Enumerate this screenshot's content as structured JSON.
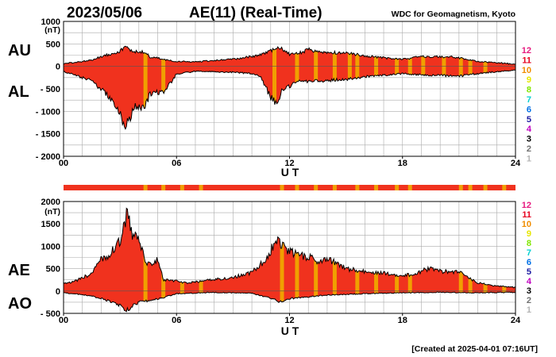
{
  "header": {
    "date": "2023/05/06",
    "title": "AE(11) (Real-Time)",
    "source": "WDC for Geomagnetism, Kyoto"
  },
  "footer": {
    "created": "[Created at 2025-04-01 07:16UT]"
  },
  "legend": {
    "items": [
      {
        "label": "12",
        "color": "#e6197f"
      },
      {
        "label": "11",
        "color": "#e6001f"
      },
      {
        "label": "10",
        "color": "#f08c00"
      },
      {
        "label": "9",
        "color": "#e6e600"
      },
      {
        "label": "8",
        "color": "#80e600"
      },
      {
        "label": "7",
        "color": "#00d0d0"
      },
      {
        "label": "6",
        "color": "#0070e6"
      },
      {
        "label": "5",
        "color": "#1a1aa0"
      },
      {
        "label": "4",
        "color": "#c000c0"
      },
      {
        "label": "3",
        "color": "#000000"
      },
      {
        "label": "2",
        "color": "#707070"
      },
      {
        "label": "1",
        "color": "#b4b4b4"
      }
    ]
  },
  "colors": {
    "fill_red": "#f0321e",
    "fill_orange": "#f0a000",
    "grid": "#aaaaaa"
  },
  "chart_data": [
    {
      "type": "area",
      "name": "AU/AL",
      "upper_label": "AU",
      "lower_label": "AL",
      "unit": "(nT)",
      "xlabel": "U T",
      "xlim": [
        0,
        24
      ],
      "ylim": [
        -2000,
        1000
      ],
      "x_ticks": [
        "00",
        "06",
        "12",
        "18",
        "24"
      ],
      "y_ticks": [
        "1000",
        "500",
        "0",
        "- 500",
        "- 1000",
        "- 1500",
        "- 2000"
      ],
      "grid": true,
      "upper": {
        "x": [
          0,
          0.5,
          1,
          1.5,
          2,
          2.5,
          3,
          3.3,
          3.6,
          4,
          4.3,
          4.6,
          5,
          5.3,
          6,
          7,
          8,
          9,
          10,
          10.5,
          11,
          11.5,
          12,
          12.5,
          13,
          13.5,
          14,
          15,
          16,
          17,
          18,
          18.5,
          19,
          19.5,
          20,
          20.5,
          21,
          22,
          23,
          24
        ],
        "values": [
          60,
          80,
          110,
          140,
          220,
          280,
          340,
          430,
          360,
          300,
          330,
          200,
          190,
          150,
          110,
          100,
          130,
          160,
          220,
          260,
          340,
          420,
          270,
          290,
          370,
          330,
          310,
          300,
          240,
          190,
          160,
          180,
          230,
          220,
          210,
          210,
          190,
          110,
          80,
          50
        ]
      },
      "lower": {
        "x": [
          0,
          0.5,
          1,
          1.5,
          2,
          2.5,
          3,
          3.2,
          3.5,
          3.8,
          4,
          4.3,
          4.6,
          5,
          5.3,
          6,
          7,
          8,
          9,
          10,
          10.5,
          11,
          11.3,
          11.6,
          12,
          12.5,
          13,
          14,
          15,
          16,
          17,
          18,
          19,
          20,
          21,
          22,
          23,
          24
        ],
        "values": [
          -120,
          -180,
          -250,
          -320,
          -500,
          -720,
          -1050,
          -1350,
          -1150,
          -900,
          -860,
          -980,
          -600,
          -560,
          -600,
          -170,
          -110,
          -120,
          -130,
          -160,
          -240,
          -700,
          -820,
          -550,
          -450,
          -330,
          -330,
          -310,
          -290,
          -230,
          -200,
          -160,
          -190,
          -200,
          -220,
          -160,
          -120,
          -80
        ]
      }
    },
    {
      "type": "area",
      "name": "AE/AO",
      "upper_label": "AE",
      "lower_label": "AO",
      "unit": "(nT)",
      "xlabel": "U T",
      "xlim": [
        0,
        24
      ],
      "ylim": [
        -500,
        2000
      ],
      "x_ticks": [
        "00",
        "06",
        "12",
        "18",
        "24"
      ],
      "y_ticks": [
        "2000",
        "1500",
        "1000",
        "500",
        "0",
        "- 500"
      ],
      "grid": true,
      "upper": {
        "x": [
          0,
          0.5,
          1,
          1.5,
          2,
          2.5,
          3,
          3.2,
          3.4,
          3.6,
          4,
          4.3,
          4.6,
          5,
          5.3,
          6,
          6.5,
          7,
          8,
          9,
          10,
          10.5,
          11,
          11.3,
          11.6,
          12,
          12.5,
          13,
          13.5,
          14,
          14.5,
          15,
          16,
          17,
          18,
          18.5,
          19,
          19.5,
          20,
          20.5,
          21,
          21.5,
          22,
          23,
          24
        ],
        "values": [
          180,
          200,
          290,
          400,
          700,
          850,
          1100,
          1500,
          1750,
          1300,
          1150,
          700,
          600,
          700,
          250,
          220,
          180,
          200,
          260,
          300,
          420,
          600,
          900,
          1200,
          1000,
          880,
          800,
          760,
          680,
          750,
          600,
          500,
          430,
          400,
          350,
          360,
          450,
          500,
          440,
          430,
          430,
          300,
          180,
          110,
          80
        ]
      },
      "lower": {
        "x": [
          0,
          1,
          2,
          3,
          3.3,
          3.6,
          4,
          5,
          6,
          8,
          10,
          11,
          11.5,
          12,
          14,
          16,
          18,
          20,
          22,
          24
        ],
        "values": [
          -40,
          -80,
          -160,
          -320,
          -460,
          -350,
          -250,
          -180,
          -60,
          -30,
          -50,
          -160,
          -250,
          -170,
          -90,
          -60,
          -40,
          -30,
          -40,
          -30
        ]
      }
    }
  ],
  "bands": {
    "top_bar_segments": [
      4.35,
      5.3,
      6.3,
      7.3,
      11.6,
      12.4,
      13.4,
      14.4,
      15.6,
      16.6,
      17.7,
      18.4,
      21.1,
      21.6,
      22.4,
      23.4
    ],
    "panel1_segments": [
      4.35,
      5.3,
      11.2,
      12.4,
      13.4,
      14.4,
      15.2,
      15.6,
      16.6,
      17.7,
      18.4,
      19.1,
      20.2,
      21.1,
      21.6,
      22.4
    ],
    "panel2_segments": [
      4.35,
      5.3,
      6.3,
      7.3,
      11.6,
      12.4,
      13.4,
      14.4,
      15.6,
      16.6,
      17.7,
      18.4,
      21.1,
      21.6,
      22.4,
      23.4
    ]
  }
}
